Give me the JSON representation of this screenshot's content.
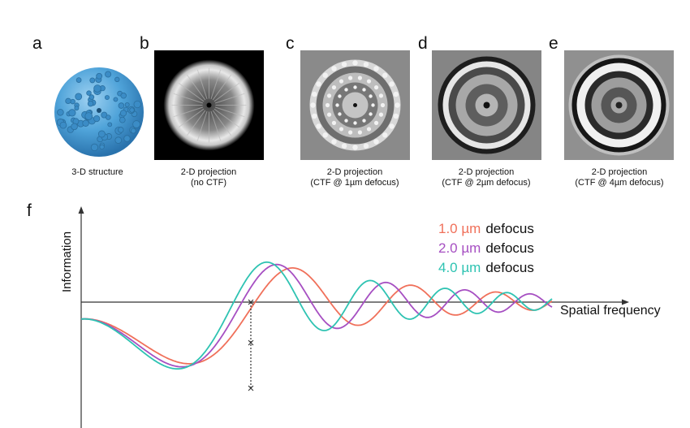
{
  "panels": [
    {
      "letter": "a",
      "caption": [
        "3-D structure"
      ]
    },
    {
      "letter": "b",
      "caption": [
        "2-D projection",
        "(no CTF)"
      ]
    },
    {
      "letter": "c",
      "caption": [
        "2-D projection",
        "(CTF @ 1µm defocus)"
      ]
    },
    {
      "letter": "d",
      "caption": [
        "2-D projection",
        "(CTF @ 2µm defocus)"
      ]
    },
    {
      "letter": "e",
      "caption": [
        "2-D projection",
        "(CTF @ 4µm defocus)"
      ]
    }
  ],
  "plot": {
    "letter": "f",
    "ylabel": "Information",
    "xlabel": "Spatial frequency",
    "legend": [
      {
        "value": "1.0 µm",
        "word": "defocus",
        "color": "#f0705a"
      },
      {
        "value": "2.0 µm",
        "word": "defocus",
        "color": "#a64fc2"
      },
      {
        "value": "4.0 µm",
        "word": "defocus",
        "color": "#2ec3b2"
      }
    ]
  }
}
